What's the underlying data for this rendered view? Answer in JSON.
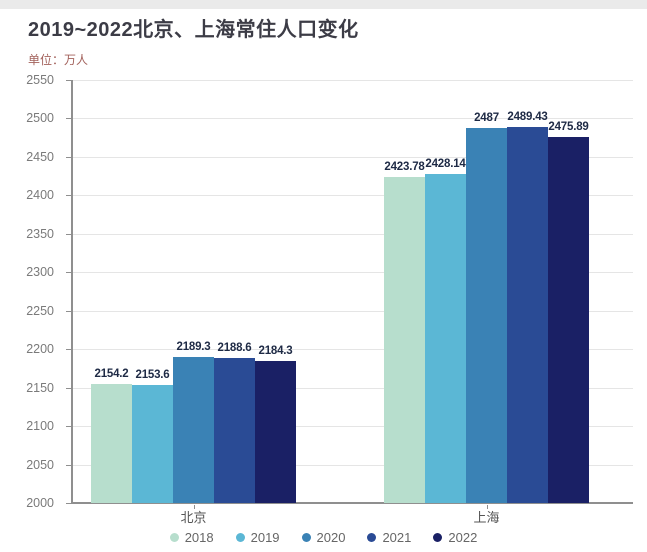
{
  "header": {
    "title": "2019~2022北京、上海常住人口变化",
    "unit_label": "单位：万人"
  },
  "chart_data": {
    "type": "bar",
    "title": "2019~2022北京、上海常住人口变化",
    "unit_label": "单位：万人",
    "categories": [
      "北京",
      "上海"
    ],
    "series": [
      {
        "name": "2018",
        "color": "#b7decd",
        "values": [
          2154.2,
          2423.78
        ]
      },
      {
        "name": "2019",
        "color": "#5bb7d5",
        "values": [
          2153.6,
          2428.14
        ]
      },
      {
        "name": "2020",
        "color": "#3a82b5",
        "values": [
          2189.3,
          2487
        ]
      },
      {
        "name": "2021",
        "color": "#2a4b95",
        "values": [
          2188.6,
          2489.43
        ]
      },
      {
        "name": "2022",
        "color": "#1a2065",
        "values": [
          2184.3,
          2475.89
        ]
      }
    ],
    "legend": [
      "2018",
      "2019",
      "2020",
      "2021",
      "2022"
    ],
    "legend_position": "bottom",
    "ylim": [
      2000,
      2550
    ],
    "yticks": [
      2000,
      2050,
      2100,
      2150,
      2200,
      2250,
      2300,
      2350,
      2400,
      2450,
      2500,
      2550
    ],
    "grid": true
  }
}
